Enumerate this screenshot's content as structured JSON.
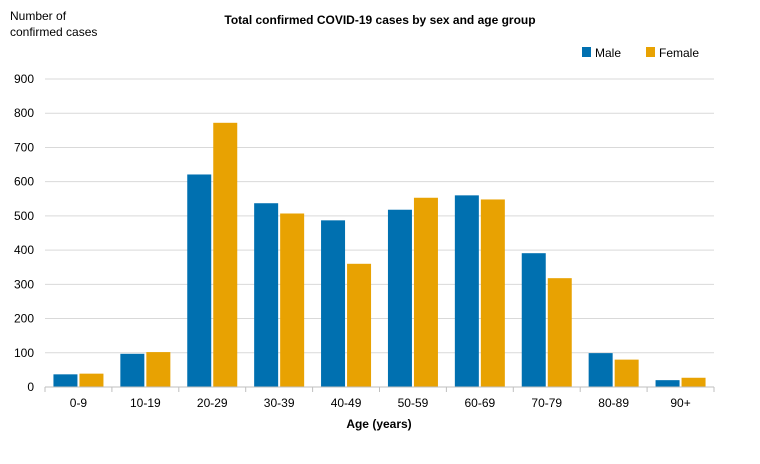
{
  "chart_data": {
    "type": "bar",
    "title": "Total confirmed COVID-19 cases by sex and age group",
    "ylabel_lines": [
      "Number of",
      "confirmed cases"
    ],
    "xlabel": "Age (years)",
    "categories": [
      "0-9",
      "10-19",
      "20-29",
      "30-39",
      "40-49",
      "50-59",
      "60-69",
      "70-79",
      "80-89",
      "90+"
    ],
    "ylim": [
      0,
      900
    ],
    "yticks": [
      0,
      100,
      200,
      300,
      400,
      500,
      600,
      700,
      800,
      900
    ],
    "grid": true,
    "legend_position": "top-right",
    "series": [
      {
        "name": "Male",
        "color": "#0070b0",
        "values": [
          37,
          97,
          621,
          537,
          487,
          518,
          560,
          391,
          99,
          20
        ]
      },
      {
        "name": "Female",
        "color": "#e8a202",
        "values": [
          39,
          102,
          772,
          507,
          360,
          553,
          548,
          318,
          80,
          27
        ]
      }
    ]
  }
}
